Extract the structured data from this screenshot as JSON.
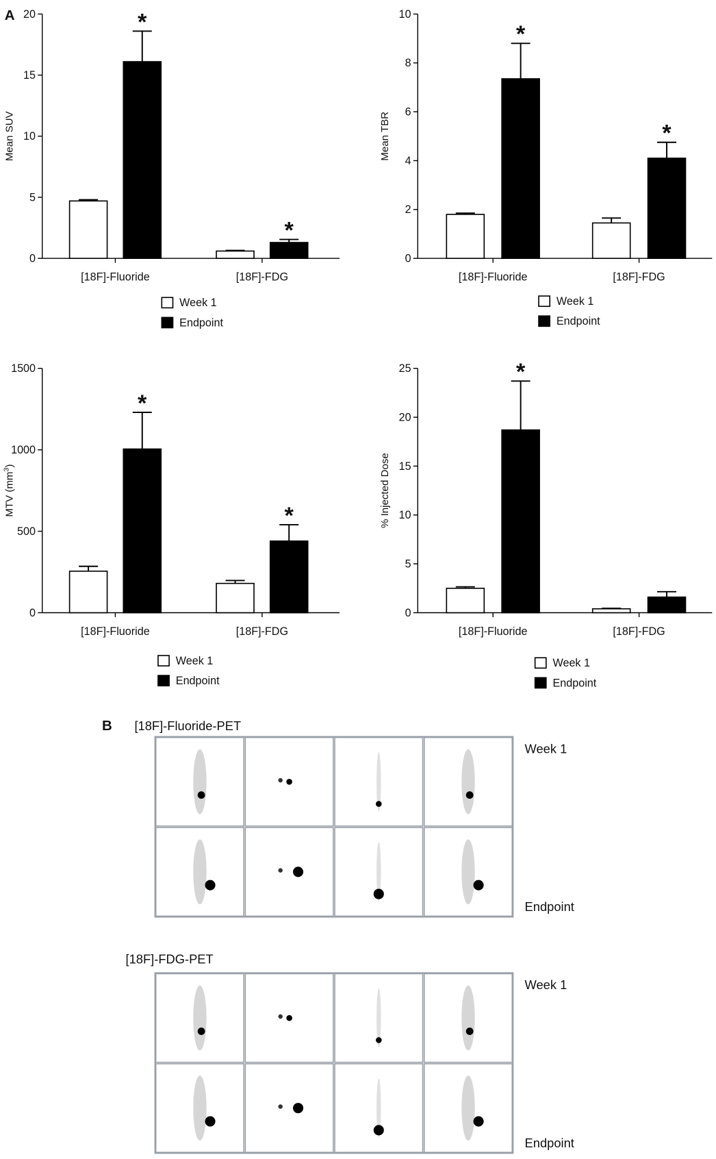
{
  "panel_labels": [
    "A",
    "B"
  ],
  "chart_data": [
    {
      "type": "bar",
      "y_label": "Mean SUV",
      "categories": [
        "[18F]-Fluoride",
        "[18F]-FDG"
      ],
      "series": [
        {
          "name": "Week 1",
          "color": "#ffffff",
          "values": [
            4.7,
            0.6
          ],
          "errors": [
            0.1,
            0.05
          ],
          "significance": [
            null,
            null
          ]
        },
        {
          "name": "Endpoint",
          "color": "#000000",
          "values": [
            16.1,
            1.3
          ],
          "errors": [
            2.5,
            0.25
          ],
          "significance": [
            "*",
            "*"
          ]
        }
      ],
      "ylim": [
        0,
        20
      ],
      "yticks": [
        0,
        5,
        10,
        15,
        20
      ],
      "legend": "bottom"
    },
    {
      "type": "bar",
      "y_label": "Mean TBR",
      "categories": [
        "[18F]-Fluoride",
        "[18F]-FDG"
      ],
      "series": [
        {
          "name": "Week 1",
          "color": "#ffffff",
          "values": [
            1.8,
            1.45
          ],
          "errors": [
            0.05,
            0.2
          ],
          "significance": [
            null,
            null
          ]
        },
        {
          "name": "Endpoint",
          "color": "#000000",
          "values": [
            7.35,
            4.1
          ],
          "errors": [
            1.45,
            0.65
          ],
          "significance": [
            "*",
            "*"
          ]
        }
      ],
      "ylim": [
        0,
        10
      ],
      "yticks": [
        0,
        2,
        4,
        6,
        8,
        10
      ],
      "legend": "bottom"
    },
    {
      "type": "bar",
      "y_label": "MTV (mm3)",
      "categories": [
        "[18F]-Fluoride",
        "[18F]-FDG"
      ],
      "series": [
        {
          "name": "Week 1",
          "color": "#ffffff",
          "values": [
            255,
            180
          ],
          "errors": [
            30,
            18
          ],
          "significance": [
            null,
            null
          ]
        },
        {
          "name": "Endpoint",
          "color": "#000000",
          "values": [
            1005,
            440
          ],
          "errors": [
            225,
            100
          ],
          "significance": [
            "*",
            "*"
          ]
        }
      ],
      "ylim": [
        0,
        1500
      ],
      "yticks": [
        0,
        500,
        1000,
        1500
      ],
      "legend": "bottom"
    },
    {
      "type": "bar",
      "y_label": "% Injected Dose",
      "categories": [
        "[18F]-Fluoride",
        "[18F]-FDG"
      ],
      "series": [
        {
          "name": "Week 1",
          "color": "#ffffff",
          "values": [
            2.5,
            0.4
          ],
          "errors": [
            0.15,
            0.05
          ],
          "significance": [
            null,
            null
          ]
        },
        {
          "name": "Endpoint",
          "color": "#000000",
          "values": [
            18.7,
            1.6
          ],
          "errors": [
            5.0,
            0.55
          ],
          "significance": [
            "*",
            null
          ]
        }
      ],
      "ylim": [
        0,
        25
      ],
      "yticks": [
        0,
        5,
        10,
        15,
        20,
        25
      ],
      "legend": "bottom"
    }
  ],
  "pet_panels": [
    {
      "title": "[18F]-Fluoride-PET",
      "rows": [
        "Week 1",
        "Endpoint"
      ]
    },
    {
      "title": "[18F]-FDG-PET",
      "rows": [
        "Week 1",
        "Endpoint"
      ]
    }
  ]
}
